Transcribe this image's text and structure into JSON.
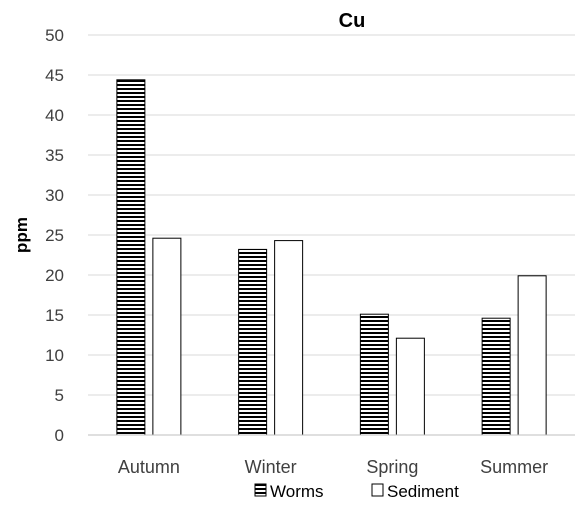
{
  "chart_data": {
    "type": "bar",
    "title": "Cu",
    "ylabel": "ppm",
    "xlabel": "",
    "categories": [
      "Autumn",
      "Winter",
      "Spring",
      "Summer"
    ],
    "series": [
      {
        "name": "Worms",
        "values": [
          44.4,
          23.2,
          15.1,
          14.6
        ],
        "pattern": "horizontal-stripes"
      },
      {
        "name": "Sediment",
        "values": [
          24.6,
          24.3,
          12.1,
          19.9
        ],
        "pattern": "solid-white"
      }
    ],
    "ylim": [
      0,
      50
    ],
    "yticks": [
      "0",
      "5",
      "10",
      "15",
      "20",
      "25",
      "30",
      "35",
      "40",
      "45",
      "50"
    ],
    "grid": true,
    "legend_position": "bottom"
  }
}
